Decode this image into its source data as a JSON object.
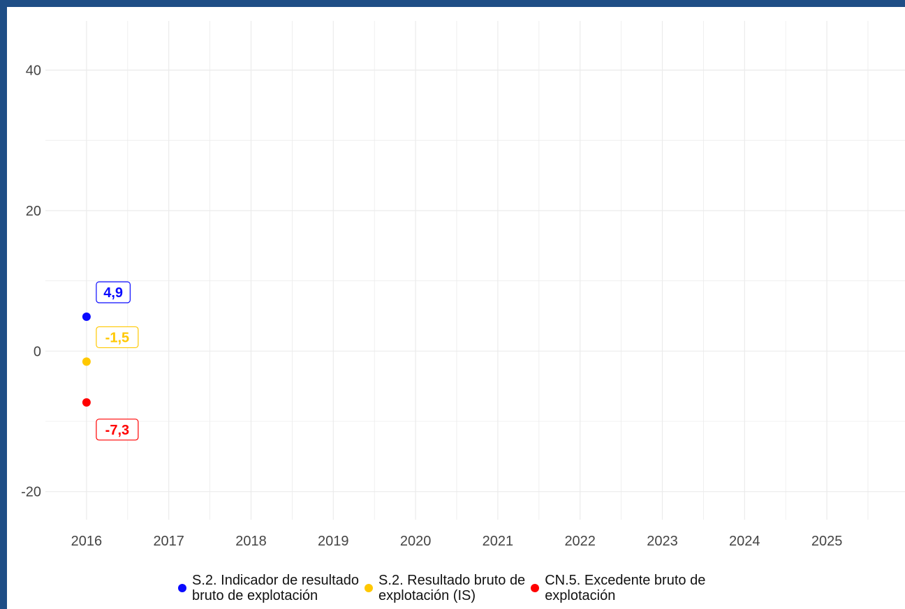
{
  "colors": {
    "page_border": "#1f4e86",
    "background": "#ffffff",
    "grid": "#ebebeb",
    "series": [
      "#0a0aff",
      "#ffc800",
      "#ff0000"
    ]
  },
  "chart_data": {
    "type": "scatter",
    "title": "",
    "xlabel": "",
    "ylabel": "",
    "x_ticks": [
      "2016",
      "2017",
      "2018",
      "2019",
      "2020",
      "2021",
      "2022",
      "2023",
      "2024",
      "2025"
    ],
    "y_ticks": [
      "40",
      "20",
      "0",
      "-20"
    ],
    "xlim": [
      2015.5,
      2025.95
    ],
    "ylim": [
      -24,
      47
    ],
    "grid": true,
    "legend_position": "bottom",
    "series": [
      {
        "name": "S.2. Indicador de resultado\nbruto de explotación",
        "color": "#0a0aff",
        "x": [
          2016
        ],
        "y": [
          4.9
        ],
        "labels": [
          "4,9"
        ],
        "label_dir": "up"
      },
      {
        "name": "S.2. Resultado bruto de\nexplotación (IS)",
        "color": "#ffc800",
        "x": [
          2016
        ],
        "y": [
          -1.5
        ],
        "labels": [
          "-1,5"
        ],
        "label_dir": "up"
      },
      {
        "name": "CN.5. Excedente bruto de\nexplotación",
        "color": "#ff0000",
        "x": [
          2016
        ],
        "y": [
          -7.3
        ],
        "labels": [
          "-7,3"
        ],
        "label_dir": "down"
      }
    ]
  }
}
